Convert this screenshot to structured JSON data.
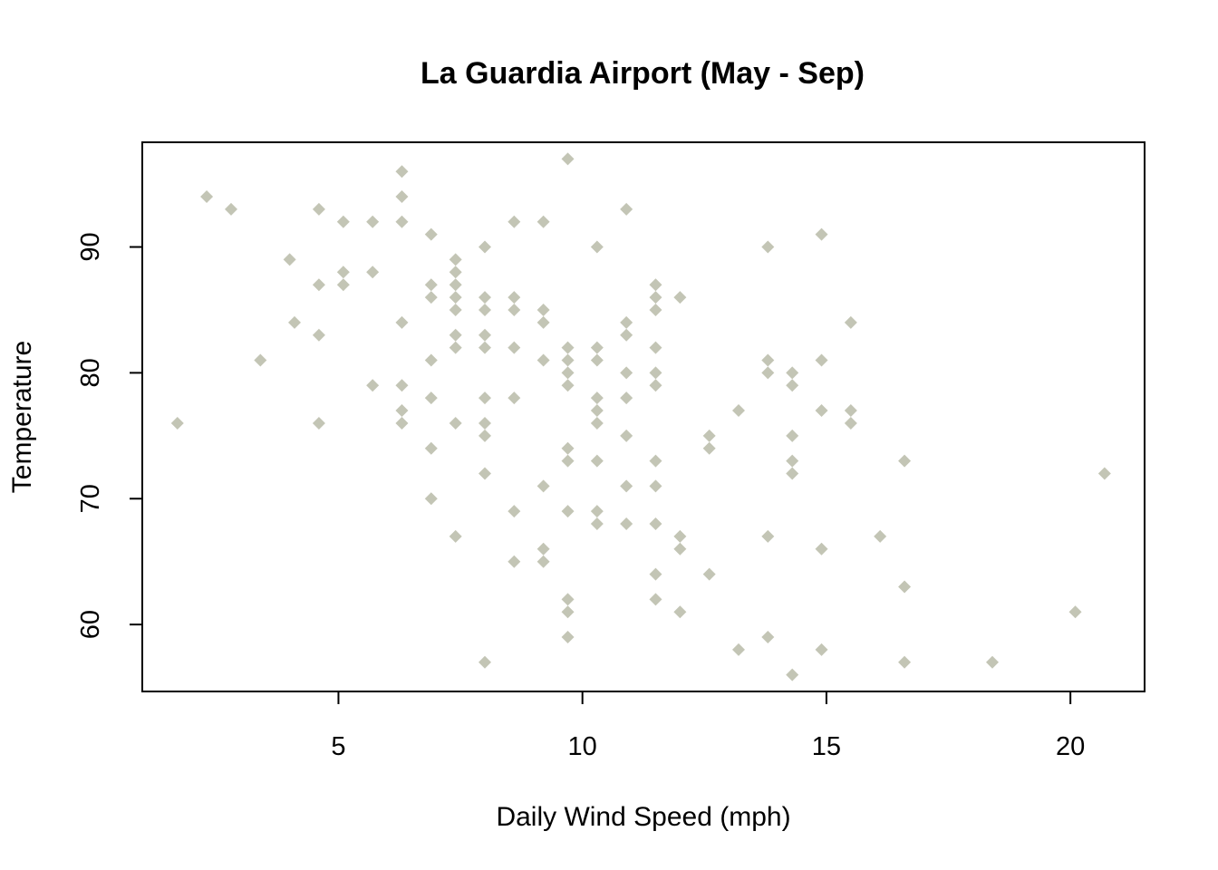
{
  "chart_data": {
    "type": "scatter",
    "title": "La Guardia Airport (May - Sep)",
    "xlabel": "Daily Wind Speed (mph)",
    "ylabel": "Temperature",
    "xlim": [
      0.98,
      21.52
    ],
    "ylim": [
      54.68,
      98.32
    ],
    "xticks": [
      5,
      10,
      15,
      20
    ],
    "yticks": [
      60,
      70,
      80,
      90
    ],
    "marker": "diamond",
    "point_color": "#c3c5b5",
    "grid": false,
    "legend": "none",
    "series": [
      {
        "points": [
          [
            1.7,
            76
          ],
          [
            2.3,
            94
          ],
          [
            2.8,
            93
          ],
          [
            3.4,
            81
          ],
          [
            4.0,
            89
          ],
          [
            4.1,
            84
          ],
          [
            4.6,
            93
          ],
          [
            4.6,
            87
          ],
          [
            4.6,
            83
          ],
          [
            4.6,
            76
          ],
          [
            5.1,
            92
          ],
          [
            5.1,
            88
          ],
          [
            5.1,
            87
          ],
          [
            5.7,
            92
          ],
          [
            5.7,
            88
          ],
          [
            5.7,
            79
          ],
          [
            6.3,
            96
          ],
          [
            6.3,
            94
          ],
          [
            6.3,
            92
          ],
          [
            6.3,
            84
          ],
          [
            6.3,
            79
          ],
          [
            6.3,
            77
          ],
          [
            6.3,
            76
          ],
          [
            6.9,
            91
          ],
          [
            6.9,
            87
          ],
          [
            6.9,
            86
          ],
          [
            6.9,
            81
          ],
          [
            6.9,
            78
          ],
          [
            6.9,
            74
          ],
          [
            6.9,
            70
          ],
          [
            7.4,
            89
          ],
          [
            7.4,
            88
          ],
          [
            7.4,
            87
          ],
          [
            7.4,
            86
          ],
          [
            7.4,
            85
          ],
          [
            7.4,
            83
          ],
          [
            7.4,
            82
          ],
          [
            7.4,
            76
          ],
          [
            7.4,
            67
          ],
          [
            8.0,
            90
          ],
          [
            8.0,
            86
          ],
          [
            8.0,
            85
          ],
          [
            8.0,
            83
          ],
          [
            8.0,
            82
          ],
          [
            8.0,
            78
          ],
          [
            8.0,
            76
          ],
          [
            8.0,
            75
          ],
          [
            8.0,
            72
          ],
          [
            8.0,
            57
          ],
          [
            8.6,
            92
          ],
          [
            8.6,
            86
          ],
          [
            8.6,
            85
          ],
          [
            8.6,
            82
          ],
          [
            8.6,
            78
          ],
          [
            8.6,
            69
          ],
          [
            8.6,
            65
          ],
          [
            9.2,
            92
          ],
          [
            9.2,
            85
          ],
          [
            9.2,
            84
          ],
          [
            9.2,
            81
          ],
          [
            9.2,
            71
          ],
          [
            9.2,
            66
          ],
          [
            9.2,
            65
          ],
          [
            9.7,
            97
          ],
          [
            9.7,
            82
          ],
          [
            9.7,
            81
          ],
          [
            9.7,
            80
          ],
          [
            9.7,
            79
          ],
          [
            9.7,
            74
          ],
          [
            9.7,
            73
          ],
          [
            9.7,
            69
          ],
          [
            9.7,
            62
          ],
          [
            9.7,
            61
          ],
          [
            9.7,
            59
          ],
          [
            10.3,
            90
          ],
          [
            10.3,
            82
          ],
          [
            10.3,
            81
          ],
          [
            10.3,
            78
          ],
          [
            10.3,
            77
          ],
          [
            10.3,
            76
          ],
          [
            10.3,
            73
          ],
          [
            10.3,
            69
          ],
          [
            10.3,
            68
          ],
          [
            10.9,
            93
          ],
          [
            10.9,
            84
          ],
          [
            10.9,
            83
          ],
          [
            10.9,
            80
          ],
          [
            10.9,
            78
          ],
          [
            10.9,
            75
          ],
          [
            10.9,
            71
          ],
          [
            10.9,
            68
          ],
          [
            11.5,
            87
          ],
          [
            11.5,
            86
          ],
          [
            11.5,
            85
          ],
          [
            11.5,
            82
          ],
          [
            11.5,
            80
          ],
          [
            11.5,
            79
          ],
          [
            11.5,
            73
          ],
          [
            11.5,
            71
          ],
          [
            11.5,
            68
          ],
          [
            11.5,
            64
          ],
          [
            11.5,
            62
          ],
          [
            12.0,
            86
          ],
          [
            12.0,
            67
          ],
          [
            12.0,
            66
          ],
          [
            12.0,
            61
          ],
          [
            12.6,
            75
          ],
          [
            12.6,
            74
          ],
          [
            12.6,
            64
          ],
          [
            13.2,
            77
          ],
          [
            13.2,
            58
          ],
          [
            13.8,
            90
          ],
          [
            13.8,
            81
          ],
          [
            13.8,
            80
          ],
          [
            13.8,
            67
          ],
          [
            13.8,
            59
          ],
          [
            14.3,
            80
          ],
          [
            14.3,
            79
          ],
          [
            14.3,
            75
          ],
          [
            14.3,
            73
          ],
          [
            14.3,
            72
          ],
          [
            14.3,
            56
          ],
          [
            14.9,
            91
          ],
          [
            14.9,
            81
          ],
          [
            14.9,
            77
          ],
          [
            14.9,
            66
          ],
          [
            14.9,
            58
          ],
          [
            15.5,
            84
          ],
          [
            15.5,
            77
          ],
          [
            15.5,
            76
          ],
          [
            16.1,
            67
          ],
          [
            16.6,
            73
          ],
          [
            16.6,
            63
          ],
          [
            16.6,
            57
          ],
          [
            18.4,
            57
          ],
          [
            20.1,
            61
          ],
          [
            20.7,
            72
          ]
        ]
      }
    ]
  }
}
